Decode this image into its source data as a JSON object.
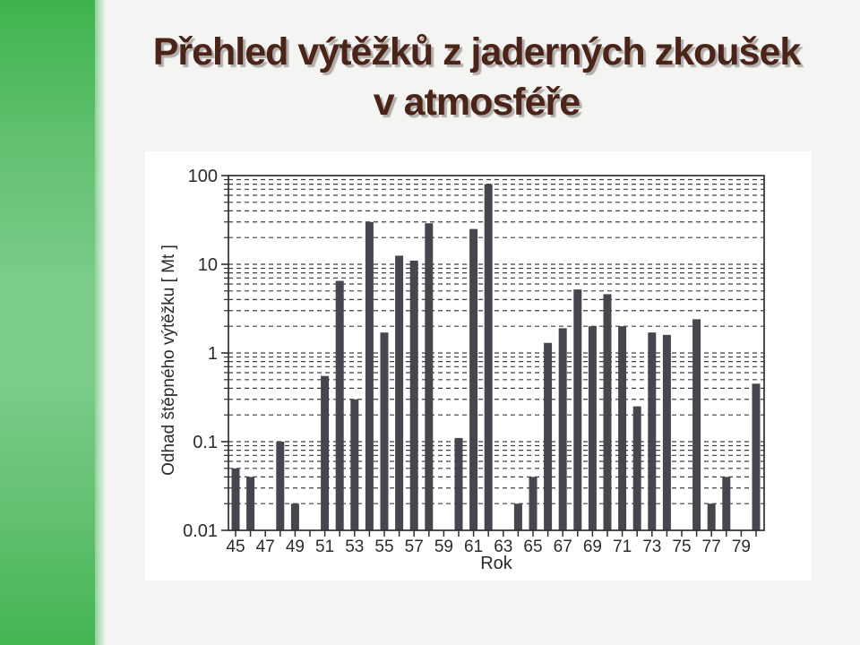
{
  "slide": {
    "background": "#f4f4f3",
    "sidebar": {
      "green_top": "#3eb44c",
      "green_mid": "#7ccd8a",
      "green_bottom": "#43b551"
    },
    "title": {
      "line1": "Přehled výtěžků z jaderných zkoušek",
      "line2": "v atmosféře",
      "color": "#4a2418"
    }
  },
  "chart_data": {
    "type": "bar",
    "title": "",
    "xlabel": "Rok",
    "ylabel": "Odhad štěpného výtěžku [ Mt ]",
    "y_scale": "log",
    "ylim": [
      0.01,
      100
    ],
    "y_ticks": [
      100,
      10,
      1,
      0.1,
      0.01
    ],
    "y_tick_labels": [
      "100",
      "10",
      "1",
      "0.1",
      "0.01"
    ],
    "x_tick_labels": [
      "45",
      "47",
      "49",
      "51",
      "53",
      "55",
      "57",
      "59",
      "61",
      "63",
      "65",
      "67",
      "69",
      "71",
      "73",
      "75",
      "77",
      "79"
    ],
    "grid": "dashed horizontal lines at every log minor and major step",
    "legend": "none",
    "bar_color": "#47464e",
    "axis_color": "#2f2f33",
    "years": [
      1945,
      1946,
      1947,
      1948,
      1949,
      1950,
      1951,
      1952,
      1953,
      1954,
      1955,
      1956,
      1957,
      1958,
      1959,
      1960,
      1961,
      1962,
      1963,
      1964,
      1965,
      1966,
      1967,
      1968,
      1969,
      1970,
      1971,
      1972,
      1973,
      1974,
      1975,
      1976,
      1977,
      1978,
      1979,
      1980
    ],
    "values": [
      0.05,
      0.04,
      null,
      0.1,
      0.02,
      null,
      0.55,
      6.5,
      0.3,
      30,
      1.7,
      12.5,
      11,
      29,
      null,
      0.11,
      25,
      80,
      null,
      0.02,
      0.04,
      1.3,
      1.9,
      5.2,
      2.0,
      4.6,
      2.0,
      0.25,
      1.7,
      1.6,
      null,
      2.4,
      0.02,
      0.04,
      null,
      0.45
    ]
  }
}
